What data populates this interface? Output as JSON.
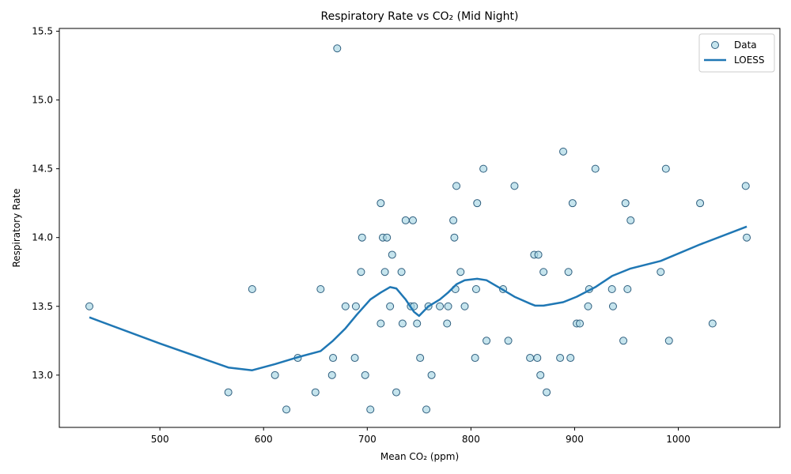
{
  "chart_data": {
    "type": "scatter",
    "title": "Respiratory Rate vs CO₂ (Mid Night)",
    "xlabel": "Mean CO₂ (ppm)",
    "ylabel": "Respiratory Rate",
    "xlim": [
      403,
      1098
    ],
    "ylim": [
      12.62,
      15.52
    ],
    "x_ticks": [
      500,
      600,
      700,
      800,
      900,
      1000
    ],
    "y_ticks": [
      13.0,
      13.5,
      14.0,
      14.5,
      15.0,
      15.5
    ],
    "grid": false,
    "legend_position": "top-right",
    "colors": {
      "scatter_fill": "#add8e6",
      "scatter_edge": "#2f5f7f",
      "loess_line": "#1f77b4"
    },
    "series": [
      {
        "name": "Data",
        "kind": "scatter",
        "points": [
          [
            432,
            13.5
          ],
          [
            566,
            12.875
          ],
          [
            589,
            13.625
          ],
          [
            611,
            13.0
          ],
          [
            622,
            12.75
          ],
          [
            633,
            13.125
          ],
          [
            650,
            12.875
          ],
          [
            655,
            13.625
          ],
          [
            666,
            13.0
          ],
          [
            667,
            13.125
          ],
          [
            671,
            15.375
          ],
          [
            679,
            13.5
          ],
          [
            688,
            13.125
          ],
          [
            689,
            13.5
          ],
          [
            694,
            13.75
          ],
          [
            695,
            14.0
          ],
          [
            698,
            13.0
          ],
          [
            703,
            12.75
          ],
          [
            713,
            14.25
          ],
          [
            713,
            13.375
          ],
          [
            715,
            14.0
          ],
          [
            717,
            13.75
          ],
          [
            719,
            14.0
          ],
          [
            722,
            13.5
          ],
          [
            724,
            13.875
          ],
          [
            728,
            12.875
          ],
          [
            733,
            13.75
          ],
          [
            734,
            13.375
          ],
          [
            737,
            14.125
          ],
          [
            742,
            13.5
          ],
          [
            744,
            14.125
          ],
          [
            745,
            13.5
          ],
          [
            748,
            13.375
          ],
          [
            751,
            13.125
          ],
          [
            757,
            12.75
          ],
          [
            759,
            13.5
          ],
          [
            762,
            13.0
          ],
          [
            770,
            13.5
          ],
          [
            777,
            13.375
          ],
          [
            778,
            13.5
          ],
          [
            783,
            14.125
          ],
          [
            784,
            14.0
          ],
          [
            785,
            13.625
          ],
          [
            786,
            14.375
          ],
          [
            790,
            13.75
          ],
          [
            794,
            13.5
          ],
          [
            804,
            13.125
          ],
          [
            805,
            13.625
          ],
          [
            806,
            14.25
          ],
          [
            812,
            14.5
          ],
          [
            815,
            13.25
          ],
          [
            831,
            13.625
          ],
          [
            836,
            13.25
          ],
          [
            842,
            14.375
          ],
          [
            857,
            13.125
          ],
          [
            861,
            13.875
          ],
          [
            864,
            13.125
          ],
          [
            865,
            13.875
          ],
          [
            867,
            13.0
          ],
          [
            870,
            13.75
          ],
          [
            873,
            12.875
          ],
          [
            886,
            13.125
          ],
          [
            889,
            14.625
          ],
          [
            894,
            13.75
          ],
          [
            896,
            13.125
          ],
          [
            898,
            14.25
          ],
          [
            902,
            13.375
          ],
          [
            905,
            13.375
          ],
          [
            913,
            13.5
          ],
          [
            914,
            13.625
          ],
          [
            920,
            14.5
          ],
          [
            936,
            13.625
          ],
          [
            937,
            13.5
          ],
          [
            947,
            13.25
          ],
          [
            949,
            14.25
          ],
          [
            951,
            13.625
          ],
          [
            954,
            14.125
          ],
          [
            983,
            13.75
          ],
          [
            988,
            14.5
          ],
          [
            991,
            13.25
          ],
          [
            1021,
            14.25
          ],
          [
            1033,
            13.375
          ],
          [
            1065,
            14.375
          ],
          [
            1066,
            14.0
          ]
        ]
      },
      {
        "name": "LOESS",
        "kind": "line",
        "points": [
          [
            432,
            13.42
          ],
          [
            500,
            13.23
          ],
          [
            566,
            13.055
          ],
          [
            589,
            13.035
          ],
          [
            611,
            13.08
          ],
          [
            633,
            13.13
          ],
          [
            655,
            13.175
          ],
          [
            667,
            13.25
          ],
          [
            679,
            13.34
          ],
          [
            690,
            13.44
          ],
          [
            703,
            13.55
          ],
          [
            713,
            13.6
          ],
          [
            722,
            13.64
          ],
          [
            728,
            13.63
          ],
          [
            737,
            13.55
          ],
          [
            745,
            13.46
          ],
          [
            750,
            13.43
          ],
          [
            759,
            13.5
          ],
          [
            770,
            13.55
          ],
          [
            778,
            13.6
          ],
          [
            786,
            13.66
          ],
          [
            794,
            13.69
          ],
          [
            806,
            13.7
          ],
          [
            815,
            13.69
          ],
          [
            831,
            13.62
          ],
          [
            842,
            13.57
          ],
          [
            857,
            13.52
          ],
          [
            862,
            13.505
          ],
          [
            870,
            13.505
          ],
          [
            889,
            13.53
          ],
          [
            902,
            13.57
          ],
          [
            920,
            13.64
          ],
          [
            936,
            13.72
          ],
          [
            954,
            13.775
          ],
          [
            983,
            13.83
          ],
          [
            1021,
            13.95
          ],
          [
            1066,
            14.08
          ]
        ]
      }
    ]
  }
}
